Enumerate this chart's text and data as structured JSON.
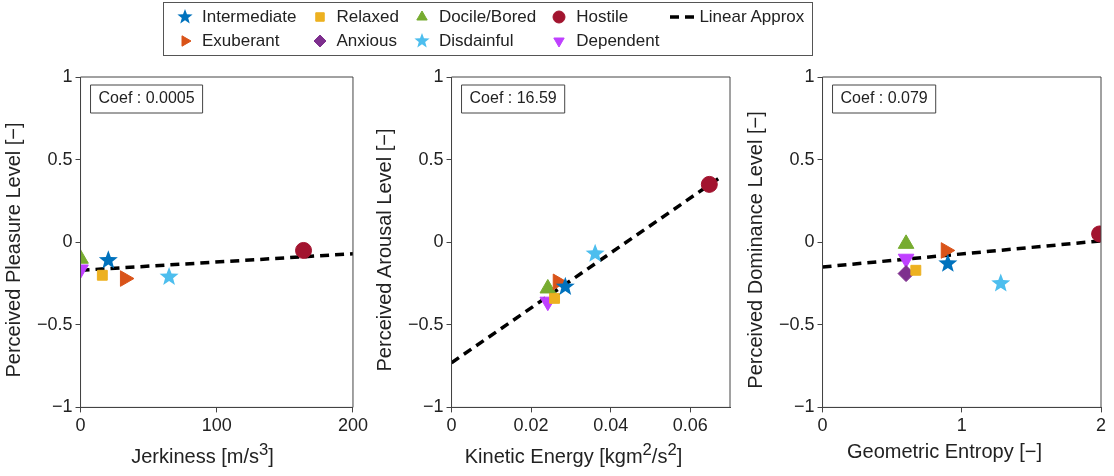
{
  "chart_data": [
    {
      "type": "scatter",
      "xlabel": "Jerkiness [m/s$^{3}$]",
      "ylabel": "Perceived Pleasure Level [−]",
      "xlim": [
        0,
        200
      ],
      "xticks": [
        0,
        100,
        200
      ],
      "ylim": [
        -1,
        1
      ],
      "yticks": [
        -1,
        -0.5,
        0,
        0.5,
        1
      ],
      "grid": false,
      "legend": "top",
      "annotations": [
        "Coef : 0.0005"
      ],
      "series": [
        {
          "name": "Intermediate",
          "color": "#0072bd",
          "marker": "star",
          "x": [
            20.4
          ],
          "values": [
            -0.11
          ]
        },
        {
          "name": "Exuberant",
          "color": "#d95319",
          "marker": "triangle-right",
          "x": [
            32.6
          ],
          "values": [
            -0.22
          ]
        },
        {
          "name": "Relaxed",
          "color": "#edb120",
          "marker": "square",
          "x": [
            16
          ],
          "values": [
            -0.2
          ]
        },
        {
          "name": "Anxious",
          "color": "#7e2f8e",
          "marker": "diamond"
        },
        {
          "name": "Docile/Bored",
          "color": "#77ac30",
          "marker": "triangle",
          "x": [
            0
          ],
          "values": [
            -0.1
          ]
        },
        {
          "name": "Disdainful",
          "color": "#4dbeee",
          "marker": "star",
          "x": [
            65
          ],
          "values": [
            -0.21
          ]
        },
        {
          "name": "Hostile",
          "color": "#a2142f",
          "marker": "circle",
          "x": [
            163.7
          ],
          "values": [
            -0.05
          ]
        },
        {
          "name": "Dependent",
          "color": "#bf40ff",
          "marker": "triangle-down",
          "x": [
            0
          ],
          "values": [
            -0.165
          ]
        },
        {
          "name": "Linear Approx",
          "type": "line",
          "color": "#000000",
          "marker": "none",
          "line_style": "dashed",
          "x": [
            0,
            200
          ],
          "values": [
            -0.17,
            -0.07
          ]
        }
      ]
    },
    {
      "type": "scatter",
      "xlabel": "Kinetic Energy [kgm$^{2}$/s$^{2}$]",
      "ylabel": "Perceived Arousal Level [−]",
      "xlim": [
        0,
        0.07
      ],
      "xticks": [
        0,
        0.02,
        0.04,
        0.06
      ],
      "ylim": [
        -1,
        1
      ],
      "yticks": [
        -1,
        -0.5,
        0,
        0.5,
        1
      ],
      "grid": false,
      "legend": false,
      "annotations": [
        "Coef : 16.59"
      ],
      "series": [
        {
          "color": "#0072bd",
          "marker": "star",
          "x": [
            0.0286
          ],
          "values": [
            -0.27
          ]
        },
        {
          "color": "#d95319",
          "marker": "triangle-right",
          "x": [
            0.0267
          ],
          "values": [
            -0.24
          ]
        },
        {
          "color": "#edb120",
          "marker": "square",
          "x": [
            0.0259
          ],
          "values": [
            -0.34
          ]
        },
        {
          "color": "#77ac30",
          "marker": "triangle",
          "x": [
            0.0242
          ],
          "values": [
            -0.28
          ]
        },
        {
          "color": "#4dbeee",
          "marker": "star",
          "x": [
            0.0361
          ],
          "values": [
            -0.07
          ]
        },
        {
          "color": "#a2142f",
          "marker": "circle",
          "x": [
            0.0648
          ],
          "values": [
            0.35
          ]
        },
        {
          "color": "#bf40ff",
          "marker": "triangle-down",
          "x": [
            0.0242
          ],
          "values": [
            -0.36
          ]
        },
        {
          "type": "line",
          "color": "#000000",
          "marker": "none",
          "line_style": "dashed",
          "x": [
            0,
            0.068
          ],
          "values": [
            -0.73,
            0.4
          ]
        }
      ]
    },
    {
      "type": "scatter",
      "xlabel": "Geometric Entropy [−]",
      "ylabel": "Perceived Dominance Level [−]",
      "xlim": [
        0,
        2
      ],
      "xticks": [
        0,
        1,
        2
      ],
      "ylim": [
        -1,
        1
      ],
      "yticks": [
        -1,
        -0.5,
        0,
        0.5,
        1
      ],
      "grid": false,
      "legend": false,
      "annotations": [
        "Coef : 0.079"
      ],
      "series": [
        {
          "color": "#0072bd",
          "marker": "star",
          "x": [
            0.9
          ],
          "values": [
            -0.13
          ]
        },
        {
          "color": "#d95319",
          "marker": "triangle-right",
          "x": [
            0.885
          ],
          "values": [
            -0.05
          ]
        },
        {
          "color": "#edb120",
          "marker": "square",
          "x": [
            0.67
          ],
          "values": [
            -0.17
          ]
        },
        {
          "color": "#7e2f8e",
          "marker": "diamond",
          "x": [
            0.6
          ],
          "values": [
            -0.19
          ]
        },
        {
          "color": "#77ac30",
          "marker": "triangle",
          "x": [
            0.6
          ],
          "values": [
            -0.01
          ]
        },
        {
          "color": "#4dbeee",
          "marker": "star",
          "x": [
            1.28
          ],
          "values": [
            -0.25
          ]
        },
        {
          "color": "#a2142f",
          "marker": "circle",
          "x": [
            1.99
          ],
          "values": [
            0.05
          ]
        },
        {
          "color": "#bf40ff",
          "marker": "triangle-down",
          "x": [
            0.6
          ],
          "values": [
            -0.1
          ]
        },
        {
          "type": "line",
          "color": "#000000",
          "marker": "none",
          "line_style": "dashed",
          "x": [
            0,
            2
          ],
          "values": [
            -0.15,
            0.008
          ]
        }
      ]
    }
  ]
}
